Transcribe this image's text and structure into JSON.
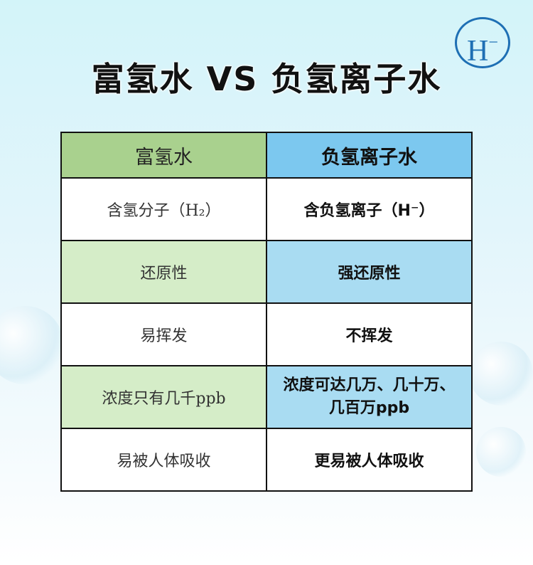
{
  "title": "富氢水 VS 负氢离子水",
  "logo": {
    "text": "H",
    "sup": "−",
    "color": "#1e6fb4"
  },
  "colors": {
    "left_header": "#a9d18e",
    "right_header": "#7cc8ef",
    "left_shade": "#d5edc8",
    "right_shade": "#a9dcf2"
  },
  "table": {
    "headers": [
      "富氢水",
      "负氢离子水"
    ],
    "rows": [
      [
        "含氢分子（H₂）",
        "含负氢离子（H⁻）"
      ],
      [
        "还原性",
        "强还原性"
      ],
      [
        "易挥发",
        "不挥发"
      ],
      [
        "浓度只有几千ppb",
        "浓度可达几万、几十万、几百万ppb"
      ],
      [
        "易被人体吸收",
        "更易被人体吸收"
      ]
    ]
  }
}
